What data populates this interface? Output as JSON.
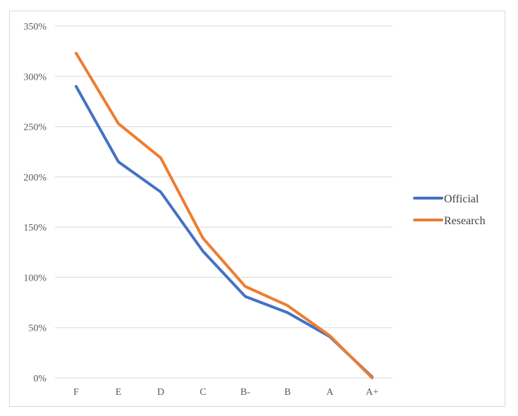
{
  "chart_data": {
    "type": "line",
    "categories": [
      "F",
      "E",
      "D",
      "C",
      "B-",
      "B",
      "A",
      "A+"
    ],
    "series": [
      {
        "name": "Official",
        "values": [
          2.9,
          2.15,
          1.85,
          1.26,
          0.81,
          0.65,
          0.41,
          0.01
        ],
        "color": "#4472c4"
      },
      {
        "name": "Research",
        "values": [
          3.23,
          2.53,
          2.19,
          1.39,
          0.91,
          0.72,
          0.42,
          0.0
        ],
        "color": "#ed7d31"
      }
    ],
    "ylim": [
      0,
      3.5
    ],
    "yticks": [
      {
        "value": 0,
        "label": "0%"
      },
      {
        "value": 0.5,
        "label": "50%"
      },
      {
        "value": 1.0,
        "label": "100%"
      },
      {
        "value": 1.5,
        "label": "150%"
      },
      {
        "value": 2.0,
        "label": "200%"
      },
      {
        "value": 2.5,
        "label": "250%"
      },
      {
        "value": 3.0,
        "label": "300%"
      },
      {
        "value": 3.5,
        "label": "350%"
      }
    ],
    "grid": true,
    "legend": "right",
    "gridline_color": "#d9d9d9"
  }
}
